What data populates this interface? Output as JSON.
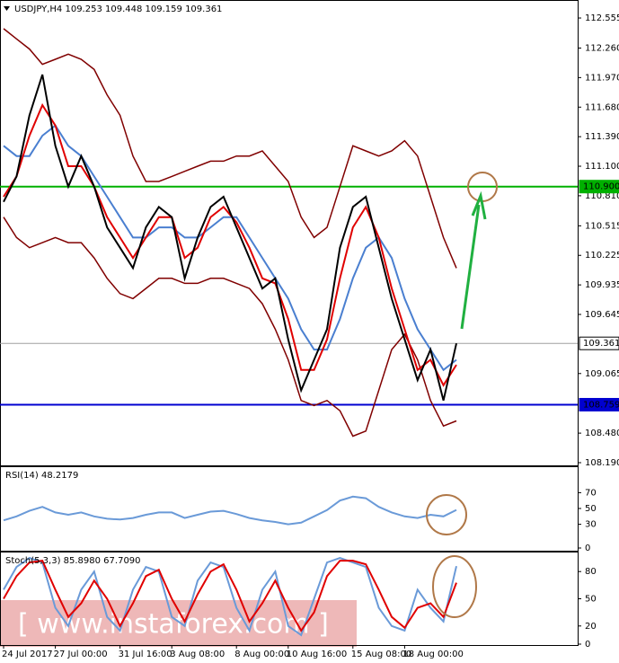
{
  "chart_data": [
    {
      "type": "line",
      "title": "USDJPY,H4  109.253 109.448 109.159 109.361",
      "ylim": [
        108.19,
        112.714
      ],
      "yticks": [
        112.555,
        {
          "value": 112.26,
          "label": "112.260"
        },
        {
          "value": 111.97,
          "label": "111.970"
        },
        {
          "value": 111.68,
          "label": "111.680"
        },
        {
          "value": 111.39,
          "label": "111.390"
        },
        {
          "value": 111.1,
          "label": "111.100"
        },
        {
          "value": 110.81,
          "label": "110.810"
        },
        110.515,
        110.225,
        109.935,
        109.645,
        109.065,
        {
          "value": 108.48,
          "label": "108.480"
        },
        {
          "value": 108.19,
          "label": "108.190"
        }
      ],
      "series": [
        {
          "color": "#800000",
          "values": [
            112.45,
            112.35,
            112.25,
            112.1,
            112.15,
            112.2,
            112.15,
            112.05,
            111.8,
            111.6,
            111.2,
            110.95,
            110.95,
            111.0,
            111.05,
            111.1,
            111.15,
            111.15,
            111.2,
            111.2,
            111.25,
            111.1,
            110.95,
            110.6,
            110.4,
            110.5,
            110.9,
            111.3,
            111.25,
            111.2,
            111.25,
            111.35,
            111.2,
            110.8,
            110.4,
            110.1
          ]
        },
        {
          "color": "#800000",
          "values": [
            110.6,
            110.4,
            110.3,
            110.35,
            110.4,
            110.35,
            110.35,
            110.2,
            110.0,
            109.85,
            109.8,
            109.9,
            110.0,
            110.0,
            109.95,
            109.95,
            110.0,
            110.0,
            109.95,
            109.9,
            109.75,
            109.5,
            109.2,
            108.8,
            108.75,
            108.8,
            108.7,
            108.45,
            108.5,
            108.9,
            109.3,
            109.45,
            109.2,
            108.8,
            108.55,
            108.6
          ]
        },
        {
          "color": "#4a7fd0",
          "values": [
            111.3,
            111.2,
            111.2,
            111.4,
            111.5,
            111.3,
            111.2,
            111.0,
            110.8,
            110.6,
            110.4,
            110.4,
            110.5,
            110.5,
            110.4,
            110.4,
            110.5,
            110.6,
            110.6,
            110.4,
            110.2,
            110.0,
            109.8,
            109.5,
            109.3,
            109.3,
            109.6,
            110.0,
            110.3,
            110.4,
            110.2,
            109.8,
            109.5,
            109.3,
            109.1,
            109.2
          ]
        },
        {
          "color": "#e00000",
          "values": [
            110.8,
            111.0,
            111.4,
            111.7,
            111.5,
            111.1,
            111.1,
            110.9,
            110.6,
            110.4,
            110.2,
            110.4,
            110.6,
            110.6,
            110.2,
            110.3,
            110.6,
            110.7,
            110.55,
            110.3,
            110.0,
            109.95,
            109.6,
            109.1,
            109.1,
            109.4,
            110.0,
            110.5,
            110.7,
            110.4,
            109.9,
            109.5,
            109.1,
            109.2,
            108.95,
            109.15
          ]
        },
        {
          "color": "#000000",
          "values": [
            110.75,
            111.0,
            111.6,
            112.0,
            111.3,
            110.9,
            111.2,
            110.9,
            110.5,
            110.3,
            110.1,
            110.5,
            110.7,
            110.6,
            110.0,
            110.4,
            110.7,
            110.8,
            110.5,
            110.2,
            109.9,
            110.0,
            109.4,
            108.9,
            109.2,
            109.5,
            110.3,
            110.7,
            110.8,
            110.3,
            109.8,
            109.4,
            109.0,
            109.3,
            108.8,
            109.361
          ]
        }
      ],
      "levels": [
        {
          "value": 110.9,
          "label": "110.900",
          "color": "#00b000"
        },
        {
          "value": 108.759,
          "label": "108.759",
          "color": "#0000d0"
        },
        {
          "value": 109.361,
          "label": "109.361",
          "color": "#a0a0a0"
        }
      ]
    },
    {
      "type": "line",
      "title": "RSI(14) 48.2179",
      "ylim": [
        0,
        100
      ],
      "yticks": [
        70,
        50,
        30,
        0
      ],
      "series": [
        {
          "color": "#6a9ad8",
          "values": [
            35,
            40,
            47,
            52,
            45,
            42,
            45,
            40,
            37,
            36,
            38,
            42,
            45,
            45,
            38,
            42,
            46,
            47,
            43,
            38,
            35,
            33,
            30,
            32,
            40,
            48,
            60,
            65,
            63,
            52,
            45,
            40,
            38,
            42,
            40,
            48.2179
          ]
        }
      ]
    },
    {
      "type": "line",
      "title": "Stoch(5,3,3) 85.8980 67.7090",
      "ylim": [
        0,
        100
      ],
      "yticks": [
        80,
        50,
        20,
        0
      ],
      "categories": [
        "24 Jul 2017",
        null,
        null,
        null,
        "27 Jul 00:00",
        null,
        null,
        null,
        null,
        "31 Jul 16:00",
        null,
        null,
        null,
        "3 Aug 08:00",
        null,
        null,
        null,
        null,
        "8 Aug 00:00",
        null,
        null,
        null,
        "10 Aug 16:00",
        null,
        null,
        null,
        null,
        "15 Aug 08:00",
        null,
        null,
        null,
        "18 Aug 00:00",
        null,
        null,
        null,
        null
      ],
      "series": [
        {
          "color": "#6a9ad8",
          "values": [
            60,
            85,
            95,
            90,
            40,
            20,
            60,
            80,
            30,
            15,
            60,
            85,
            80,
            30,
            20,
            70,
            90,
            85,
            40,
            15,
            60,
            80,
            20,
            10,
            50,
            90,
            95,
            90,
            85,
            40,
            20,
            15,
            60,
            40,
            25,
            85.898
          ]
        },
        {
          "color": "#e00000",
          "values": [
            50,
            75,
            90,
            92,
            60,
            30,
            45,
            70,
            50,
            20,
            45,
            75,
            82,
            50,
            25,
            55,
            80,
            88,
            60,
            25,
            45,
            70,
            40,
            15,
            35,
            75,
            92,
            92,
            88,
            60,
            30,
            18,
            40,
            45,
            30,
            67.709
          ]
        }
      ]
    }
  ],
  "watermark": "[  www.instaforex.com  ]"
}
